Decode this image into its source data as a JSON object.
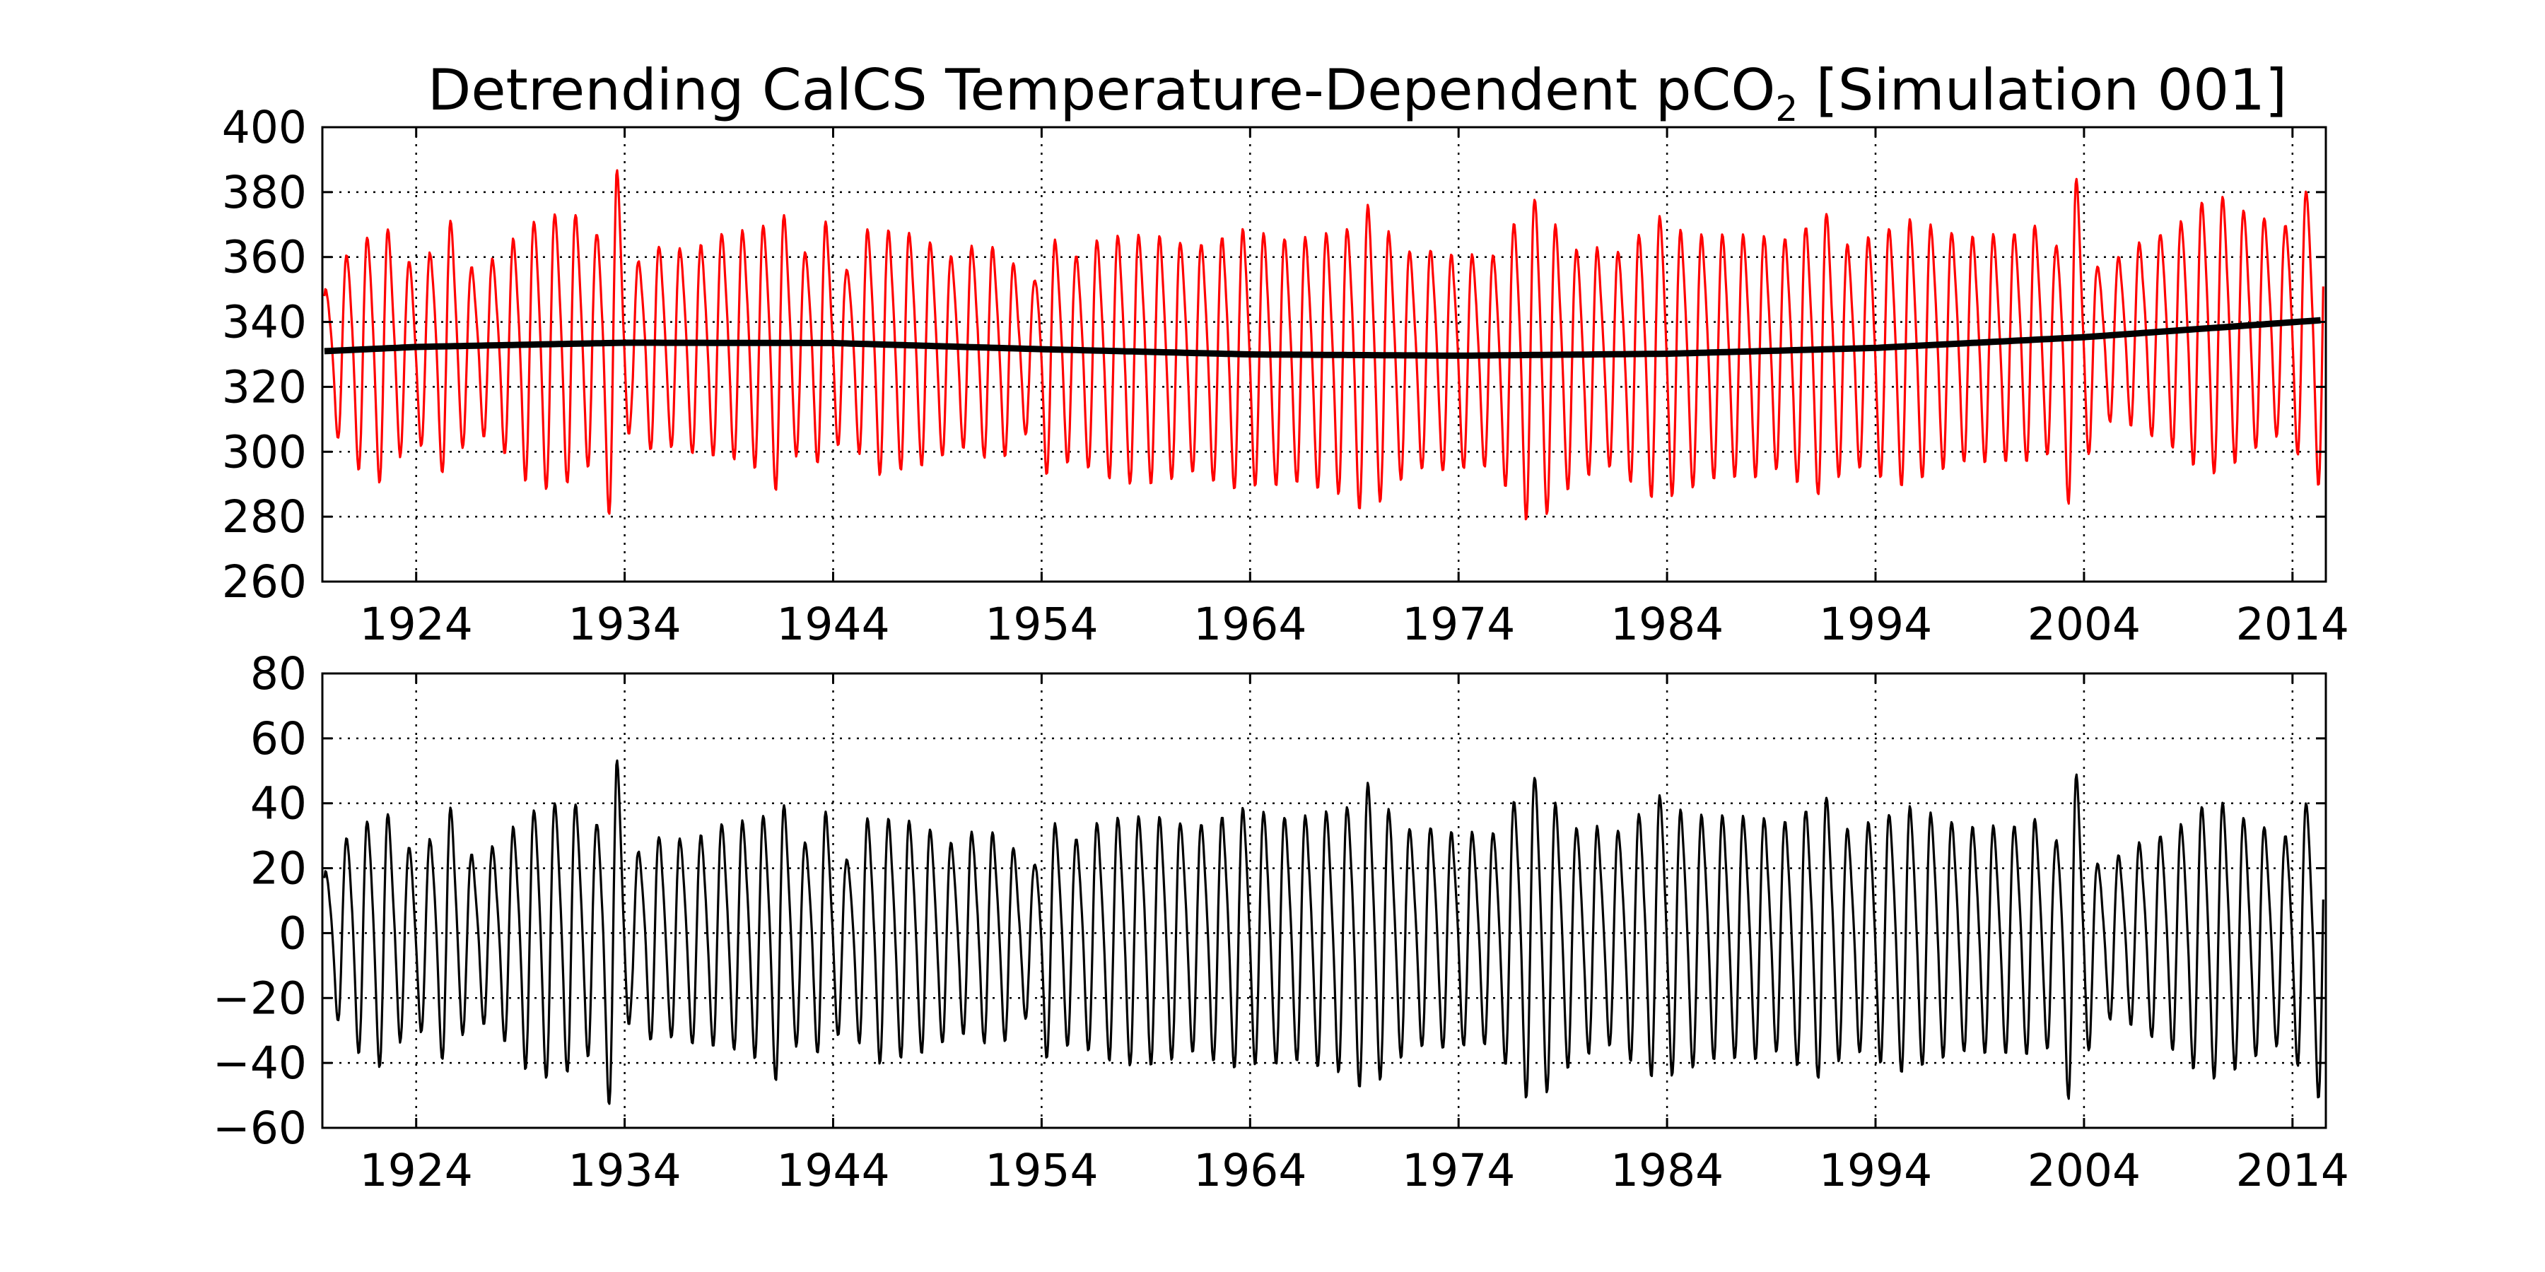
{
  "chart_data": [
    {
      "type": "line",
      "title": "Detrending CalCS Temperature-Dependent pCO",
      "title_subscript": "2",
      "title_suffix": " [Simulation 001]",
      "xlim": [
        1919.5,
        2015.6
      ],
      "ylim": [
        260,
        400
      ],
      "x_ticks": [
        1924,
        1934,
        1944,
        1954,
        1964,
        1974,
        1984,
        1994,
        2004,
        2014
      ],
      "y_ticks": [
        260,
        280,
        300,
        320,
        340,
        360,
        380,
        400
      ],
      "grid": true,
      "series": [
        {
          "color": "#ff0000",
          "style": "seasonal-oscillation",
          "x_start": 1919.6,
          "x_end": 2015.5,
          "cycle_years": 1.0,
          "base_amplitude": 29,
          "envelope": [
            [
              1919.6,
              0.7
            ],
            [
              1921.2,
              1.25
            ],
            [
              1922.5,
              1.4
            ],
            [
              1923.6,
              0.95
            ],
            [
              1924.6,
              1.05
            ],
            [
              1925.6,
              1.45
            ],
            [
              1926.6,
              0.85
            ],
            [
              1927.6,
              1.0
            ],
            [
              1929.5,
              1.45
            ],
            [
              1931.5,
              1.5
            ],
            [
              1932.6,
              1.2
            ],
            [
              1933.6,
              2.05
            ],
            [
              1934.3,
              0.8
            ],
            [
              1935.3,
              1.15
            ],
            [
              1936.5,
              1.05
            ],
            [
              1938.6,
              1.2
            ],
            [
              1940.4,
              1.3
            ],
            [
              1941.6,
              1.55
            ],
            [
              1942.6,
              1.0
            ],
            [
              1943.6,
              1.4
            ],
            [
              1944.6,
              0.85
            ],
            [
              1945.6,
              1.35
            ],
            [
              1947.6,
              1.3
            ],
            [
              1949.6,
              1.05
            ],
            [
              1951.6,
              1.2
            ],
            [
              1953.6,
              0.8
            ],
            [
              1954.2,
              1.3
            ],
            [
              1955.6,
              1.1
            ],
            [
              1957.6,
              1.35
            ],
            [
              1959.6,
              1.35
            ],
            [
              1961.6,
              1.25
            ],
            [
              1963.6,
              1.45
            ],
            [
              1965.6,
              1.3
            ],
            [
              1968.6,
              1.45
            ],
            [
              1969.6,
              1.7
            ],
            [
              1971.6,
              1.2
            ],
            [
              1973.6,
              1.2
            ],
            [
              1975.6,
              1.15
            ],
            [
              1977.6,
              1.8
            ],
            [
              1979.6,
              1.25
            ],
            [
              1981.6,
              1.2
            ],
            [
              1983.6,
              1.55
            ],
            [
              1985.6,
              1.35
            ],
            [
              1987.6,
              1.3
            ],
            [
              1989.6,
              1.25
            ],
            [
              1991.6,
              1.55
            ],
            [
              1992.6,
              1.2
            ],
            [
              1993.6,
              1.25
            ],
            [
              1995.6,
              1.45
            ],
            [
              1997.6,
              1.25
            ],
            [
              1999.6,
              1.2
            ],
            [
              2001.6,
              1.3
            ],
            [
              2002.6,
              1.05
            ],
            [
              2003.5,
              1.95
            ],
            [
              2004.6,
              0.85
            ],
            [
              2005.6,
              0.9
            ],
            [
              2007.6,
              1.1
            ],
            [
              2009.6,
              1.45
            ],
            [
              2010.6,
              1.5
            ],
            [
              2012.6,
              1.25
            ],
            [
              2013.6,
              1.1
            ],
            [
              2015.5,
              1.8
            ]
          ]
        },
        {
          "color": "#000000",
          "style": "trend",
          "points": [
            [
              1919.6,
              331
            ],
            [
              1924,
              332.3
            ],
            [
              1934,
              333.6
            ],
            [
              1944,
              333.5
            ],
            [
              1954,
              331.6
            ],
            [
              1964,
              330
            ],
            [
              1974,
              329.6
            ],
            [
              1984,
              330.2
            ],
            [
              1994,
              332
            ],
            [
              2004,
              335.3
            ],
            [
              2015.5,
              340.6
            ]
          ]
        }
      ]
    },
    {
      "type": "line",
      "title": "",
      "xlim": [
        1919.5,
        2015.6
      ],
      "ylim": [
        -60,
        80
      ],
      "x_ticks": [
        1924,
        1934,
        1944,
        1954,
        1964,
        1974,
        1984,
        1994,
        2004,
        2014
      ],
      "y_ticks": [
        -60,
        -40,
        -20,
        0,
        20,
        40,
        60,
        80
      ],
      "y_tick_labels": [
        "−60",
        "−40",
        "−20",
        "0",
        "20",
        "40",
        "60",
        "80"
      ],
      "grid": true,
      "series": [
        {
          "color": "#000000",
          "style": "seasonal-oscillation-detrended",
          "derived_from": 0
        }
      ]
    }
  ]
}
